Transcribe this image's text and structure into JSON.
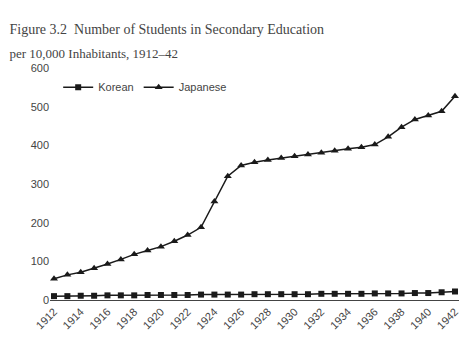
{
  "chart_data": {
    "type": "line",
    "title": "Figure 3.2  Number of Students in Secondary Education",
    "subtitle": "per 10,000 Inhabitants, 1912–42",
    "x": [
      1912,
      1913,
      1914,
      1915,
      1916,
      1917,
      1918,
      1919,
      1920,
      1921,
      1922,
      1923,
      1924,
      1925,
      1926,
      1927,
      1928,
      1929,
      1930,
      1931,
      1932,
      1933,
      1934,
      1935,
      1936,
      1937,
      1938,
      1939,
      1940,
      1941,
      1942
    ],
    "series": [
      {
        "name": "Korean",
        "color": "#1a1a1a",
        "marker": "square",
        "line_style": "solid",
        "values": [
          10,
          10,
          11,
          11,
          12,
          12,
          12,
          13,
          13,
          13,
          13,
          14,
          14,
          14,
          14,
          15,
          15,
          15,
          15,
          15,
          16,
          16,
          16,
          16,
          17,
          17,
          17,
          18,
          18,
          20,
          22
        ]
      },
      {
        "name": "Japanese",
        "color": "#1a1a1a",
        "marker": "triangle-up",
        "line_style": "solid",
        "values": [
          55,
          65,
          72,
          82,
          93,
          105,
          118,
          128,
          138,
          152,
          168,
          188,
          255,
          320,
          348,
          356,
          362,
          367,
          372,
          376,
          381,
          386,
          391,
          395,
          402,
          422,
          447,
          467,
          477,
          488,
          527
        ]
      }
    ],
    "xlim": [
      1911.7,
      1942.3
    ],
    "xticks": [
      1912,
      1914,
      1916,
      1918,
      1920,
      1922,
      1924,
      1926,
      1928,
      1930,
      1932,
      1934,
      1936,
      1938,
      1940,
      1942
    ],
    "ylim": [
      0,
      600
    ],
    "yticks": [
      0,
      100,
      200,
      300,
      400,
      500,
      600
    ],
    "grid": false,
    "legend": "upper left"
  }
}
